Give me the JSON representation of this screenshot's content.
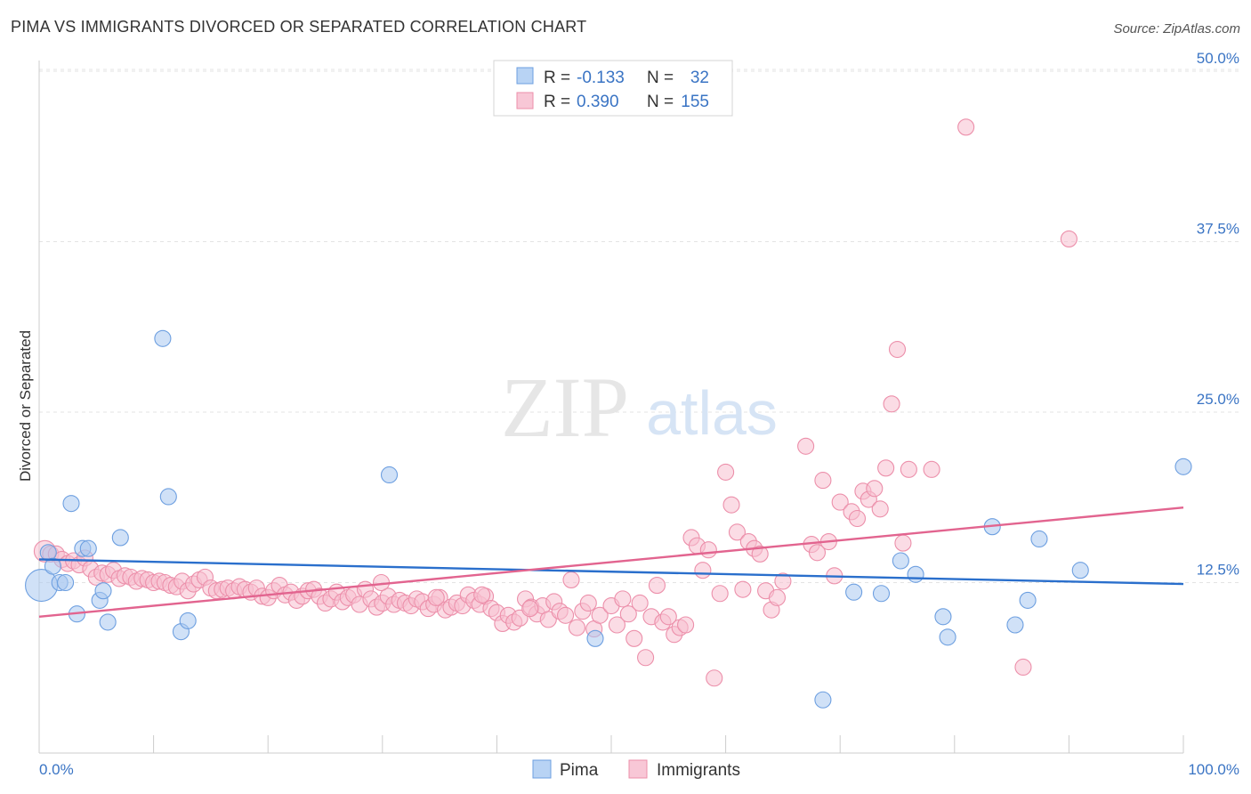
{
  "header": {
    "title": "PIMA VS IMMIGRANTS DIVORCED OR SEPARATED CORRELATION CHART",
    "source": "Source: ZipAtlas.com"
  },
  "watermark": {
    "zip": "ZIP",
    "atlas": "atlas"
  },
  "chart_data": {
    "type": "scatter",
    "ylabel": "Divorced or Separated",
    "xlim": [
      0,
      100
    ],
    "ylim": [
      0,
      52
    ],
    "x_tick_labels": {
      "left": "0.0%",
      "right": "100.0%"
    },
    "y_ticks": [
      {
        "value": 12.5,
        "label": "12.5%"
      },
      {
        "value": 25.0,
        "label": "25.0%"
      },
      {
        "value": 37.5,
        "label": "37.5%"
      },
      {
        "value": 50.0,
        "label": "50.0%"
      }
    ],
    "grid": "horizontal-dashed",
    "legend_top": {
      "placement": "top-center",
      "rows": [
        {
          "r_label": "R =",
          "r_value": "-0.133",
          "n_label": "N =",
          "n_value": "32"
        },
        {
          "r_label": "R =",
          "r_value": "0.390",
          "n_label": "N =",
          "n_value": "155"
        }
      ]
    },
    "series": [
      {
        "name": "Pima",
        "color": "#a9c8f0",
        "stroke": "#6d9fe0",
        "line_color": "#2a6fcc",
        "trend": {
          "x": [
            0,
            100
          ],
          "y": [
            14.2,
            12.4
          ]
        },
        "points": [
          [
            0.2,
            12.3
          ],
          [
            0.8,
            14.7
          ],
          [
            1.2,
            13.7
          ],
          [
            1.8,
            12.5
          ],
          [
            2.3,
            12.5
          ],
          [
            2.8,
            18.3
          ],
          [
            3.3,
            10.2
          ],
          [
            3.8,
            15.0
          ],
          [
            4.3,
            15.0
          ],
          [
            5.3,
            11.2
          ],
          [
            5.6,
            11.9
          ],
          [
            6.0,
            9.6
          ],
          [
            7.1,
            15.8
          ],
          [
            10.8,
            30.4
          ],
          [
            11.3,
            18.8
          ],
          [
            12.4,
            8.9
          ],
          [
            13.0,
            9.7
          ],
          [
            30.6,
            20.4
          ],
          [
            48.6,
            8.4
          ],
          [
            68.5,
            3.9
          ],
          [
            71.2,
            11.8
          ],
          [
            73.6,
            11.7
          ],
          [
            75.3,
            14.1
          ],
          [
            76.6,
            13.1
          ],
          [
            79.0,
            10.0
          ],
          [
            79.4,
            8.5
          ],
          [
            83.3,
            16.6
          ],
          [
            85.3,
            9.4
          ],
          [
            86.4,
            11.2
          ],
          [
            87.4,
            15.7
          ],
          [
            91.0,
            13.4
          ],
          [
            100.0,
            21.0
          ]
        ],
        "sizes": [
          18,
          9,
          9,
          9,
          9,
          9,
          9,
          9,
          9,
          9,
          9,
          9,
          9,
          9,
          9,
          9,
          9,
          9,
          9,
          9,
          9,
          9,
          9,
          9,
          9,
          9,
          9,
          9,
          9,
          9,
          9,
          9
        ]
      },
      {
        "name": "Immigrants",
        "color": "#f7c0d0",
        "stroke": "#ec8faa",
        "line_color": "#e2648f",
        "trend": {
          "x": [
            0,
            100
          ],
          "y": [
            10.0,
            18.0
          ]
        },
        "points": [
          [
            0.5,
            14.8
          ],
          [
            1.0,
            14.6
          ],
          [
            1.5,
            14.6
          ],
          [
            2.0,
            14.2
          ],
          [
            2.5,
            13.9
          ],
          [
            3.0,
            14.1
          ],
          [
            3.5,
            13.8
          ],
          [
            4.0,
            14.3
          ],
          [
            4.5,
            13.5
          ],
          [
            5.0,
            12.9
          ],
          [
            5.5,
            13.2
          ],
          [
            6.0,
            13.1
          ],
          [
            6.5,
            13.4
          ],
          [
            7.0,
            12.8
          ],
          [
            7.5,
            13.0
          ],
          [
            8.0,
            12.9
          ],
          [
            8.5,
            12.6
          ],
          [
            9.0,
            12.8
          ],
          [
            9.5,
            12.7
          ],
          [
            10.0,
            12.5
          ],
          [
            10.5,
            12.6
          ],
          [
            11.0,
            12.5
          ],
          [
            11.5,
            12.3
          ],
          [
            12.0,
            12.2
          ],
          [
            12.5,
            12.6
          ],
          [
            13.0,
            11.9
          ],
          [
            13.5,
            12.4
          ],
          [
            14.0,
            12.7
          ],
          [
            14.5,
            12.9
          ],
          [
            15.0,
            12.1
          ],
          [
            15.5,
            11.9
          ],
          [
            16.0,
            12.0
          ],
          [
            16.5,
            12.1
          ],
          [
            17.0,
            11.9
          ],
          [
            17.5,
            12.2
          ],
          [
            18.0,
            12.0
          ],
          [
            18.5,
            11.8
          ],
          [
            19.0,
            12.1
          ],
          [
            19.5,
            11.5
          ],
          [
            20.0,
            11.4
          ],
          [
            20.5,
            11.9
          ],
          [
            21.0,
            12.3
          ],
          [
            21.5,
            11.6
          ],
          [
            22.0,
            11.8
          ],
          [
            22.5,
            11.2
          ],
          [
            23.0,
            11.5
          ],
          [
            23.5,
            11.9
          ],
          [
            24.0,
            12.0
          ],
          [
            24.5,
            11.5
          ],
          [
            25.0,
            11.0
          ],
          [
            25.5,
            11.3
          ],
          [
            26.0,
            11.8
          ],
          [
            26.5,
            11.1
          ],
          [
            27.0,
            11.4
          ],
          [
            27.5,
            11.6
          ],
          [
            28.0,
            10.9
          ],
          [
            28.5,
            12.0
          ],
          [
            29.0,
            11.3
          ],
          [
            29.5,
            10.7
          ],
          [
            30.0,
            11.0
          ],
          [
            30.5,
            11.5
          ],
          [
            31.0,
            10.9
          ],
          [
            31.5,
            11.2
          ],
          [
            32.0,
            11.0
          ],
          [
            32.5,
            10.8
          ],
          [
            33.0,
            11.3
          ],
          [
            33.5,
            11.1
          ],
          [
            34.0,
            10.6
          ],
          [
            34.5,
            10.9
          ],
          [
            35.0,
            11.4
          ],
          [
            35.5,
            10.5
          ],
          [
            36.0,
            10.7
          ],
          [
            36.5,
            11.0
          ],
          [
            37.0,
            10.8
          ],
          [
            37.5,
            11.6
          ],
          [
            38.0,
            11.2
          ],
          [
            38.5,
            10.9
          ],
          [
            39.0,
            11.5
          ],
          [
            39.5,
            10.6
          ],
          [
            40.0,
            10.3
          ],
          [
            40.5,
            9.5
          ],
          [
            41.0,
            10.1
          ],
          [
            41.5,
            9.6
          ],
          [
            42.0,
            9.9
          ],
          [
            42.5,
            11.3
          ],
          [
            43.0,
            10.7
          ],
          [
            43.5,
            10.2
          ],
          [
            44.0,
            10.8
          ],
          [
            44.5,
            9.8
          ],
          [
            45.0,
            11.1
          ],
          [
            45.5,
            10.4
          ],
          [
            46.0,
            10.1
          ],
          [
            46.5,
            12.7
          ],
          [
            47.0,
            9.2
          ],
          [
            47.5,
            10.4
          ],
          [
            48.0,
            11.0
          ],
          [
            48.5,
            9.1
          ],
          [
            49.0,
            10.1
          ],
          [
            50.0,
            10.8
          ],
          [
            50.5,
            9.4
          ],
          [
            51.0,
            11.3
          ],
          [
            51.5,
            10.2
          ],
          [
            52.0,
            8.4
          ],
          [
            52.5,
            11.0
          ],
          [
            53.0,
            7.0
          ],
          [
            53.5,
            10.0
          ],
          [
            54.0,
            12.3
          ],
          [
            54.5,
            9.6
          ],
          [
            55.0,
            10.0
          ],
          [
            55.5,
            8.7
          ],
          [
            56.0,
            9.2
          ],
          [
            56.5,
            9.4
          ],
          [
            57.0,
            15.8
          ],
          [
            57.5,
            15.2
          ],
          [
            58.0,
            13.4
          ],
          [
            58.5,
            14.9
          ],
          [
            59.0,
            5.5
          ],
          [
            59.5,
            11.7
          ],
          [
            60.0,
            20.6
          ],
          [
            60.5,
            18.2
          ],
          [
            61.0,
            16.2
          ],
          [
            61.5,
            12.0
          ],
          [
            62.0,
            15.5
          ],
          [
            62.5,
            15.0
          ],
          [
            63.0,
            14.6
          ],
          [
            63.5,
            11.9
          ],
          [
            64.0,
            10.5
          ],
          [
            64.5,
            11.4
          ],
          [
            65.0,
            12.6
          ],
          [
            67.0,
            22.5
          ],
          [
            67.5,
            15.3
          ],
          [
            68.0,
            14.7
          ],
          [
            68.5,
            20.0
          ],
          [
            69.0,
            15.5
          ],
          [
            69.5,
            13.0
          ],
          [
            70.0,
            18.4
          ],
          [
            71.0,
            17.7
          ],
          [
            71.5,
            17.2
          ],
          [
            72.0,
            19.2
          ],
          [
            72.5,
            18.6
          ],
          [
            73.0,
            19.4
          ],
          [
            73.5,
            17.9
          ],
          [
            74.0,
            20.9
          ],
          [
            74.5,
            25.6
          ],
          [
            75.0,
            29.6
          ],
          [
            75.5,
            15.4
          ],
          [
            76.0,
            20.8
          ],
          [
            78.0,
            20.8
          ],
          [
            81.0,
            45.9
          ],
          [
            86.0,
            6.3
          ],
          [
            90.0,
            37.7
          ],
          [
            29.9,
            12.5
          ],
          [
            34.7,
            11.4
          ],
          [
            38.7,
            11.6
          ],
          [
            42.9,
            10.6
          ]
        ],
        "sizes": [
          12,
          9,
          9,
          9,
          9,
          9,
          9,
          9,
          9,
          9,
          9,
          9,
          9,
          9,
          9,
          9,
          9,
          9,
          9,
          9,
          9,
          9,
          9,
          9,
          9,
          9,
          9,
          9,
          9,
          9,
          9,
          9,
          9,
          9,
          9,
          9,
          9,
          9,
          9,
          9,
          9,
          9,
          9,
          9,
          9,
          9,
          9,
          9,
          9,
          9,
          9,
          9,
          9,
          9,
          9,
          9,
          9,
          9,
          9,
          9,
          9,
          9,
          9,
          9,
          9,
          9,
          9,
          9,
          9,
          9,
          9,
          9,
          9,
          9,
          9,
          9,
          9,
          9,
          9,
          9,
          9,
          9,
          9,
          9,
          9,
          9,
          9,
          9,
          9,
          9,
          9,
          9,
          9,
          9,
          9,
          9,
          9,
          9,
          9,
          9,
          9,
          9,
          9,
          9,
          9,
          9,
          9,
          9,
          9,
          9,
          9,
          9,
          9,
          9,
          9,
          9,
          9,
          9,
          9,
          9,
          9,
          9,
          9,
          9,
          9,
          9,
          9,
          9,
          9,
          9,
          9,
          9,
          9,
          9,
          9,
          9,
          9,
          9,
          9,
          9,
          9,
          9,
          9,
          9,
          9,
          9,
          9,
          9,
          9,
          9,
          9,
          9,
          9,
          9,
          9
        ]
      }
    ]
  }
}
